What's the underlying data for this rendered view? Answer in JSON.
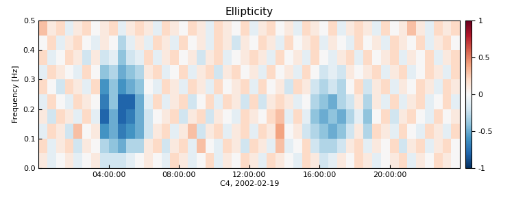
{
  "chart_data": {
    "type": "heatmap",
    "title": "Ellipticity",
    "x_label": "C4, 2002-02-19",
    "y_label": "Frequency [Hz]",
    "xlim": [
      0,
      24
    ],
    "xticks": [
      {
        "value": 4,
        "label": "04:00:00"
      },
      {
        "value": 8,
        "label": "08:00:00"
      },
      {
        "value": 12,
        "label": "12:00:00"
      },
      {
        "value": 16,
        "label": "16:00:00"
      },
      {
        "value": 20,
        "label": "20:00:00"
      }
    ],
    "ylim": [
      0,
      0.5
    ],
    "yticks": [
      0.0,
      0.1,
      0.2,
      0.3,
      0.4,
      0.5
    ],
    "x_edges": [
      0,
      0.5,
      1,
      1.5,
      2,
      2.5,
      3,
      3.5,
      4,
      4.5,
      5,
      5.5,
      6,
      6.5,
      7,
      7.5,
      8,
      8.5,
      9,
      9.5,
      10,
      10.5,
      11,
      11.5,
      12,
      12.5,
      13,
      13.5,
      14,
      14.5,
      15,
      15.5,
      16,
      16.5,
      17,
      17.5,
      18,
      18.5,
      19,
      19.5,
      20,
      20.5,
      21,
      21.5,
      22,
      22.5,
      23,
      23.5,
      24
    ],
    "y_edges": [
      0,
      0.05,
      0.1,
      0.15,
      0.2,
      0.25,
      0.3,
      0.35,
      0.4,
      0.45,
      0.5
    ],
    "cells": [
      [
        0.1,
        -0.1,
        0.0,
        0.1,
        -0.1,
        0.0,
        0.1,
        -0.2,
        -0.2,
        -0.2,
        -0.1,
        0.0,
        0.1,
        0.0,
        -0.1,
        0.2,
        0.1,
        -0.1,
        0.0,
        0.2,
        -0.1,
        0.1,
        0.0,
        0.2,
        0.1,
        -0.1,
        0.2,
        0.1,
        0.0,
        -0.1,
        0.2,
        0.1,
        -0.2,
        -0.1,
        0.1,
        0.0,
        0.2,
        0.1,
        -0.1,
        0.0,
        0.1,
        0.2,
        -0.1,
        0.1,
        0.0,
        0.2,
        0.1,
        0.0
      ],
      [
        0.2,
        -0.1,
        0.1,
        0.2,
        -0.2,
        0.1,
        0.0,
        -0.3,
        -0.4,
        -0.5,
        -0.3,
        -0.3,
        0.1,
        0.2,
        -0.2,
        0.1,
        0.2,
        -0.1,
        0.3,
        0.0,
        -0.1,
        0.2,
        0.1,
        -0.2,
        0.2,
        0.1,
        -0.1,
        0.3,
        -0.1,
        0.0,
        0.2,
        -0.2,
        -0.3,
        -0.3,
        -0.2,
        0.1,
        0.2,
        -0.1,
        0.1,
        0.0,
        0.2,
        -0.2,
        0.1,
        0.2,
        -0.1,
        0.1,
        0.2,
        0.0
      ],
      [
        -0.1,
        0.2,
        0.1,
        -0.2,
        0.3,
        0.0,
        0.1,
        -0.6,
        -0.5,
        -0.7,
        -0.6,
        -0.5,
        -0.2,
        0.1,
        0.2,
        -0.1,
        0.1,
        0.3,
        -0.2,
        0.1,
        0.2,
        -0.1,
        0.1,
        0.2,
        -0.1,
        0.2,
        0.1,
        0.4,
        0.0,
        0.1,
        -0.2,
        -0.3,
        -0.4,
        -0.5,
        -0.4,
        -0.2,
        0.1,
        -0.3,
        0.2,
        0.1,
        -0.1,
        0.2,
        0.0,
        -0.1,
        0.2,
        0.1,
        -0.1,
        0.2
      ],
      [
        0.1,
        -0.2,
        0.2,
        0.1,
        -0.1,
        0.2,
        -0.1,
        -0.8,
        -0.5,
        -0.8,
        -0.7,
        -0.5,
        -0.2,
        0.0,
        0.1,
        0.2,
        -0.2,
        0.1,
        0.2,
        -0.2,
        0.1,
        0.0,
        -0.1,
        0.2,
        0.1,
        0.0,
        0.2,
        0.3,
        -0.1,
        0.2,
        -0.1,
        -0.4,
        -0.5,
        -0.4,
        -0.5,
        -0.3,
        -0.1,
        -0.4,
        0.0,
        0.2,
        -0.2,
        0.1,
        0.2,
        0.0,
        -0.1,
        0.2,
        0.0,
        0.1
      ],
      [
        -0.1,
        0.2,
        0.0,
        -0.1,
        0.2,
        0.1,
        0.0,
        -0.7,
        -0.4,
        -0.8,
        -0.8,
        -0.5,
        -0.1,
        0.2,
        -0.1,
        0.1,
        0.2,
        -0.2,
        0.0,
        0.2,
        -0.1,
        0.2,
        0.1,
        -0.2,
        0.2,
        -0.2,
        0.1,
        0.2,
        0.1,
        -0.1,
        0.0,
        -0.3,
        -0.4,
        -0.5,
        -0.3,
        -0.2,
        0.1,
        -0.3,
        0.1,
        -0.1,
        0.2,
        -0.1,
        0.1,
        0.2,
        -0.1,
        0.0,
        0.2,
        -0.1
      ],
      [
        0.2,
        0.0,
        -0.2,
        0.2,
        0.1,
        -0.1,
        0.2,
        -0.6,
        -0.4,
        -0.6,
        -0.5,
        -0.4,
        0.0,
        -0.1,
        0.2,
        0.1,
        -0.1,
        0.2,
        0.1,
        -0.1,
        0.2,
        0.0,
        0.1,
        0.2,
        -0.1,
        0.2,
        0.0,
        0.1,
        -0.2,
        0.2,
        0.1,
        -0.2,
        -0.3,
        -0.2,
        -0.3,
        0.0,
        0.2,
        -0.2,
        0.1,
        0.2,
        -0.1,
        0.1,
        0.0,
        0.2,
        0.1,
        -0.1,
        0.2,
        0.1
      ],
      [
        -0.1,
        0.2,
        0.1,
        0.0,
        -0.1,
        0.2,
        0.0,
        -0.4,
        -0.3,
        -0.5,
        -0.4,
        -0.3,
        0.1,
        0.2,
        -0.1,
        0.0,
        0.2,
        -0.1,
        0.1,
        0.2,
        -0.2,
        0.1,
        0.2,
        0.0,
        0.1,
        -0.1,
        0.2,
        0.0,
        0.1,
        -0.1,
        0.2,
        0.0,
        -0.2,
        -0.1,
        -0.2,
        0.1,
        0.0,
        0.1,
        0.2,
        -0.1,
        0.1,
        0.2,
        -0.1,
        0.0,
        0.2,
        0.1,
        -0.1,
        0.2
      ],
      [
        0.2,
        -0.1,
        0.0,
        0.2,
        0.1,
        -0.2,
        0.1,
        -0.2,
        -0.1,
        -0.4,
        -0.2,
        -0.1,
        0.2,
        -0.1,
        0.1,
        0.2,
        0.0,
        0.1,
        -0.2,
        0.1,
        0.2,
        -0.1,
        0.0,
        0.1,
        0.2,
        0.1,
        -0.1,
        0.2,
        0.0,
        0.1,
        -0.1,
        0.2,
        0.0,
        -0.1,
        0.1,
        0.2,
        -0.1,
        0.2,
        0.0,
        0.1,
        0.2,
        -0.1,
        0.1,
        0.0,
        0.2,
        -0.1,
        0.1,
        0.2
      ],
      [
        0.0,
        0.2,
        -0.1,
        0.1,
        0.2,
        0.0,
        -0.1,
        0.1,
        0.0,
        -0.3,
        -0.1,
        0.1,
        -0.1,
        0.2,
        0.1,
        -0.1,
        0.2,
        0.0,
        0.1,
        -0.1,
        0.2,
        0.1,
        -0.2,
        0.1,
        0.0,
        0.2,
        0.1,
        -0.1,
        0.2,
        0.0,
        0.1,
        0.2,
        -0.1,
        0.1,
        0.0,
        -0.1,
        0.2,
        0.0,
        0.1,
        -0.1,
        0.2,
        0.1,
        0.0,
        0.2,
        -0.1,
        0.1,
        0.2,
        0.0
      ],
      [
        0.3,
        0.1,
        0.2,
        -0.1,
        0.1,
        0.2,
        0.0,
        0.1,
        0.2,
        -0.1,
        0.1,
        0.2,
        0.1,
        -0.1,
        0.2,
        0.1,
        0.0,
        0.2,
        0.1,
        -0.1,
        0.2,
        0.1,
        0.0,
        0.2,
        -0.1,
        0.1,
        0.2,
        0.0,
        0.1,
        -0.1,
        0.2,
        0.1,
        0.0,
        0.2,
        -0.1,
        0.1,
        0.2,
        0.1,
        -0.1,
        0.2,
        0.0,
        0.1,
        0.3,
        0.1,
        -0.1,
        0.2,
        0.1,
        0.2
      ]
    ],
    "colorbar_lim": [
      -1,
      1
    ],
    "colorbar_ticks": [
      -1,
      -0.5,
      0,
      0.5,
      1
    ]
  }
}
